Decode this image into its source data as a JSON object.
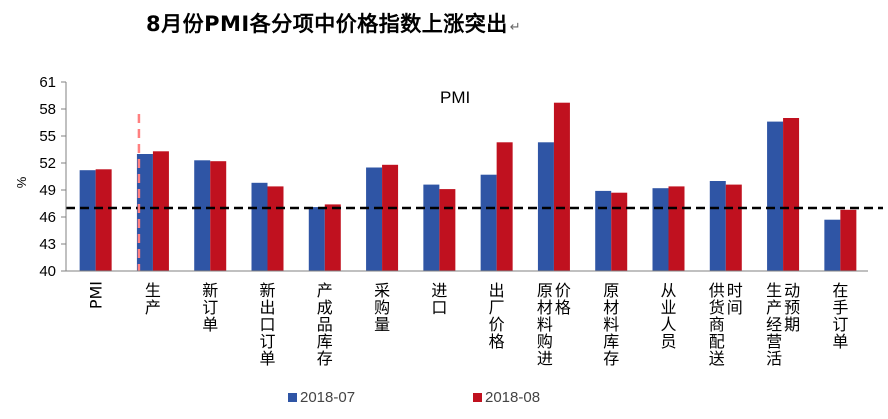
{
  "title": "8月份PMI各分项中价格指数上涨突出",
  "title_mark": "↵",
  "chart_data": {
    "type": "bar",
    "title": "8月份PMI各分项中价格指数上涨突出",
    "ylabel": "%",
    "xlabel": "",
    "ylim": [
      40,
      61
    ],
    "yticks": [
      40,
      43,
      46,
      49,
      52,
      55,
      58,
      61
    ],
    "categories": [
      [
        "PMI"
      ],
      [
        "生产"
      ],
      [
        "新订单"
      ],
      [
        "新出口订单"
      ],
      [
        "产成品库存"
      ],
      [
        "采购量"
      ],
      [
        "进口"
      ],
      [
        "出厂价格"
      ],
      [
        "原材料购进",
        "价格"
      ],
      [
        "原材料库存"
      ],
      [
        "从业人员"
      ],
      [
        "供货商配送",
        "时间"
      ],
      [
        "生产经营活",
        "动预期"
      ],
      [
        "在手订单"
      ]
    ],
    "series": [
      {
        "name": "2018-07",
        "color": "#2f55a5",
        "values": [
          51.2,
          53.0,
          52.3,
          49.8,
          47.1,
          51.5,
          49.6,
          50.7,
          54.3,
          48.9,
          49.2,
          50.0,
          56.6,
          45.7
        ]
      },
      {
        "name": "2018-08",
        "color": "#c0111f",
        "values": [
          51.3,
          53.3,
          52.2,
          49.4,
          47.4,
          51.8,
          49.1,
          54.3,
          58.7,
          48.7,
          49.4,
          49.6,
          57.0,
          46.8
        ]
      }
    ],
    "reference_line": {
      "value": 47,
      "style": "dashed",
      "color": "#000000"
    },
    "marker_line": {
      "category_index": 1,
      "color": "#ff8080",
      "style": "dashed"
    },
    "annotation": "PMI",
    "legend_position": "bottom"
  }
}
